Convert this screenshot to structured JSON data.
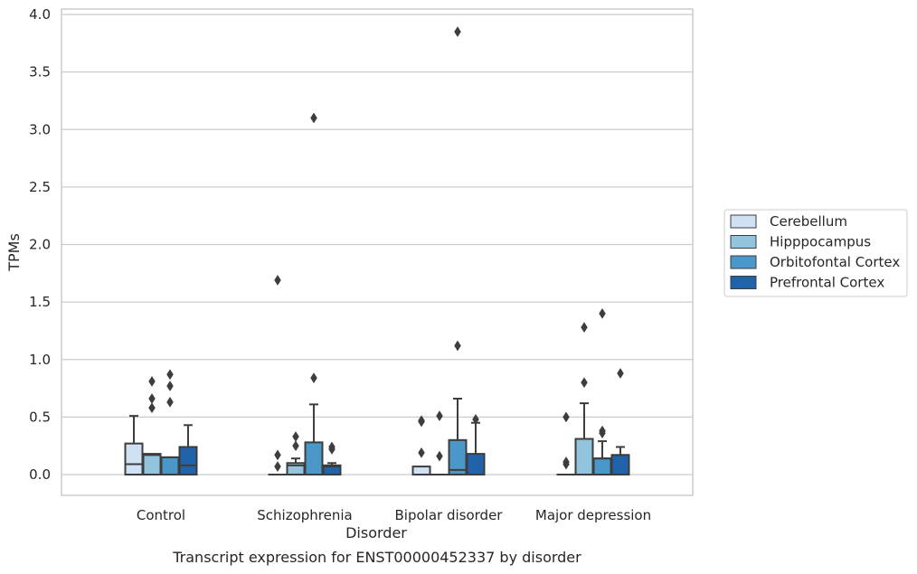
{
  "chart_data": {
    "type": "box",
    "caption": "Transcript expression for ENST00000452337 by disorder",
    "xlabel": "Disorder",
    "ylabel": "TPMs",
    "ylim": [
      -0.18,
      4.05
    ],
    "yticks": [
      "0.0",
      "0.5",
      "1.0",
      "1.5",
      "2.0",
      "2.5",
      "3.0",
      "3.5",
      "4.0"
    ],
    "grid": true,
    "legend_position": "right",
    "categories": [
      "Control",
      "Schizophrenia",
      "Bipolar disorder",
      "Major depression"
    ],
    "series": [
      {
        "name": "Cerebellum",
        "color": "#cfe1f2",
        "boxes": [
          {
            "q1": 0,
            "median": 0.09,
            "q3": 0.27,
            "whisker_low": 0,
            "whisker_high": 0.51,
            "outliers": []
          },
          {
            "q1": 0,
            "median": 0,
            "q3": 0,
            "whisker_low": 0,
            "whisker_high": 0,
            "outliers": [
              0.07,
              0.17,
              1.69
            ]
          },
          {
            "q1": 0,
            "median": 0,
            "q3": 0.07,
            "whisker_low": 0,
            "whisker_high": 0.07,
            "outliers": [
              0.19,
              0.46,
              0.47
            ]
          },
          {
            "q1": 0,
            "median": 0,
            "q3": 0,
            "whisker_low": 0,
            "whisker_high": 0,
            "outliers": [
              0.09,
              0.11,
              0.5
            ]
          }
        ]
      },
      {
        "name": "Hipppocampus",
        "color": "#93c4de",
        "boxes": [
          {
            "q1": 0,
            "median": 0.17,
            "q3": 0.18,
            "whisker_low": 0,
            "whisker_high": 0.18,
            "outliers": [
              0.58,
              0.66,
              0.81
            ]
          },
          {
            "q1": 0,
            "median": 0.08,
            "q3": 0.1,
            "whisker_low": 0,
            "whisker_high": 0.14,
            "outliers": [
              0.25,
              0.33
            ]
          },
          {
            "q1": 0,
            "median": 0,
            "q3": 0,
            "whisker_low": 0,
            "whisker_high": 0,
            "outliers": [
              0.16,
              0.51
            ]
          },
          {
            "q1": 0,
            "median": 0,
            "q3": 0.31,
            "whisker_low": 0,
            "whisker_high": 0.62,
            "outliers": [
              0.8,
              1.28
            ]
          }
        ]
      },
      {
        "name": "Orbitofontal Cortex",
        "color": "#4a98c9",
        "boxes": [
          {
            "q1": 0,
            "median": 0.15,
            "q3": 0.15,
            "whisker_low": 0,
            "whisker_high": 0.15,
            "outliers": [
              0.63,
              0.77,
              0.87
            ]
          },
          {
            "q1": 0,
            "median": 0,
            "q3": 0.28,
            "whisker_low": 0,
            "whisker_high": 0.61,
            "outliers": [
              0.84,
              3.1
            ]
          },
          {
            "q1": 0,
            "median": 0.04,
            "q3": 0.3,
            "whisker_low": 0,
            "whisker_high": 0.66,
            "outliers": [
              1.12,
              3.85
            ]
          },
          {
            "q1": 0,
            "median": 0.14,
            "q3": 0.14,
            "whisker_low": 0,
            "whisker_high": 0.29,
            "outliers": [
              0.36,
              0.38,
              1.4
            ]
          }
        ]
      },
      {
        "name": "Prefrontal Cortex",
        "color": "#2163aa",
        "boxes": [
          {
            "q1": 0,
            "median": 0.08,
            "q3": 0.24,
            "whisker_low": 0,
            "whisker_high": 0.43,
            "outliers": []
          },
          {
            "q1": 0,
            "median": 0.07,
            "q3": 0.08,
            "whisker_low": 0,
            "whisker_high": 0.1,
            "outliers": [
              0.22,
              0.24
            ]
          },
          {
            "q1": 0,
            "median": 0,
            "q3": 0.18,
            "whisker_low": 0,
            "whisker_high": 0.45,
            "outliers": [
              0.48
            ]
          },
          {
            "q1": 0,
            "median": 0.17,
            "q3": 0.17,
            "whisker_low": 0,
            "whisker_high": 0.24,
            "outliers": [
              0.88
            ]
          }
        ]
      }
    ]
  }
}
